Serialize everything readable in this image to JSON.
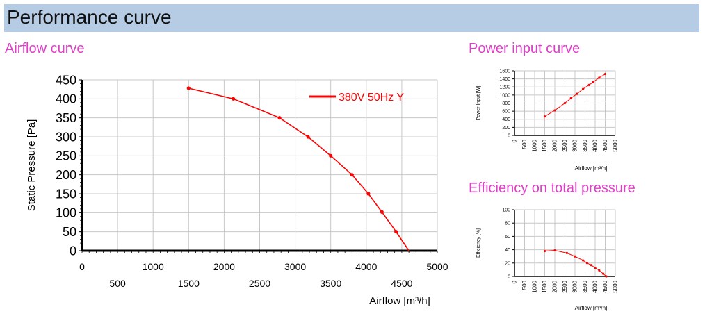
{
  "header": {
    "title": "Performance curve"
  },
  "sections": {
    "airflow": "Airflow curve",
    "power": "Power input curve",
    "efficiency": "Efficiency on total pressure"
  },
  "colors": {
    "curve": "#ff0000",
    "grid": "#c8c8c8",
    "header_bg": "#b5cce4",
    "section_title": "#e040c8"
  },
  "chart_data": [
    {
      "id": "airflow",
      "type": "line",
      "xlabel": "Airflow [m³/h]",
      "ylabel": "Static Pressure [Pa]",
      "xlim": [
        0,
        5000
      ],
      "ylim": [
        0,
        450
      ],
      "x_ticks_upper": [
        "0",
        "1000",
        "2000",
        "3000",
        "4000",
        "5000"
      ],
      "x_ticks_lower": [
        "500",
        "1500",
        "2500",
        "3500",
        "4500"
      ],
      "y_ticks": [
        "0",
        "50",
        "100",
        "150",
        "200",
        "250",
        "300",
        "350",
        "400",
        "450"
      ],
      "grid": true,
      "legend_position": "top-right",
      "series": [
        {
          "name": "380V 50Hz Y",
          "x": [
            1500,
            2130,
            2780,
            3180,
            3500,
            3800,
            4030,
            4220,
            4420,
            4600
          ],
          "y": [
            428,
            400,
            350,
            300,
            250,
            200,
            150,
            102,
            50,
            0
          ]
        }
      ]
    },
    {
      "id": "power",
      "type": "line",
      "xlabel": "Airflow [m³/h]",
      "ylabel": "Power Input [W]",
      "xlim": [
        0,
        5000
      ],
      "ylim": [
        0,
        1600
      ],
      "x_ticks": [
        "0",
        "500",
        "1000",
        "1500",
        "2000",
        "2500",
        "3000",
        "3500",
        "4000",
        "4500",
        "5000"
      ],
      "y_ticks": [
        "0",
        "200",
        "400",
        "600",
        "800",
        "1000",
        "1200",
        "1400",
        "1600"
      ],
      "grid": true,
      "series": [
        {
          "x": [
            1500,
            2000,
            2500,
            2800,
            3100,
            3400,
            3700,
            3900,
            4200,
            4500
          ],
          "y": [
            470,
            620,
            800,
            920,
            1030,
            1150,
            1250,
            1320,
            1430,
            1520
          ]
        }
      ]
    },
    {
      "id": "efficiency",
      "type": "line",
      "xlabel": "Airflow [m³/h]",
      "ylabel": "Efficiency [%]",
      "xlim": [
        0,
        5000
      ],
      "ylim": [
        0,
        100
      ],
      "x_ticks": [
        "0",
        "500",
        "1000",
        "1500",
        "2000",
        "2500",
        "3000",
        "3500",
        "4000",
        "4500",
        "5000"
      ],
      "y_ticks": [
        "0",
        "20",
        "40",
        "60",
        "80",
        "100"
      ],
      "grid": true,
      "series": [
        {
          "x": [
            1500,
            2000,
            2600,
            3000,
            3400,
            3600,
            3800,
            4000,
            4200,
            4400,
            4550
          ],
          "y": [
            38,
            39,
            35,
            30,
            24,
            20,
            17,
            13,
            9,
            4,
            0
          ]
        }
      ]
    }
  ]
}
